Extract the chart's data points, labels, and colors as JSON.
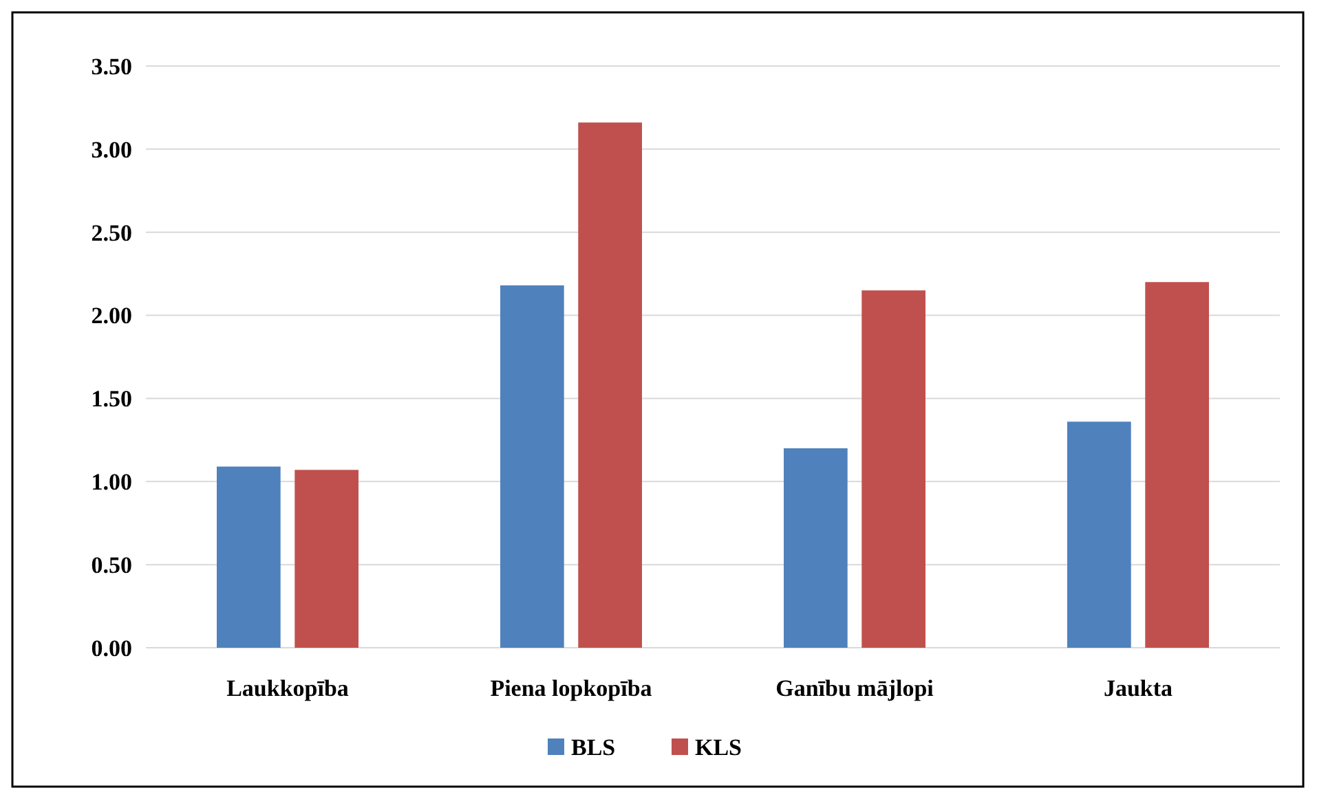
{
  "chart_data": {
    "type": "bar",
    "categories": [
      "Laukkopība",
      "Piena lopkopība",
      "Ganību mājlopi",
      "Jaukta"
    ],
    "series": [
      {
        "name": "BLS",
        "color": "#4f81bd",
        "values": [
          1.09,
          2.18,
          1.2,
          1.36
        ]
      },
      {
        "name": "KLS",
        "color": "#c0504d",
        "values": [
          1.07,
          3.16,
          2.15,
          2.2
        ]
      }
    ],
    "ylim": [
      0,
      3.5
    ],
    "yticks": [
      {
        "value": 0,
        "label": "0.00"
      },
      {
        "value": 0.5,
        "label": "0.50"
      },
      {
        "value": 1,
        "label": "1.00"
      },
      {
        "value": 1.5,
        "label": "1.50"
      },
      {
        "value": 2,
        "label": "2.00"
      },
      {
        "value": 2.5,
        "label": "2.50"
      },
      {
        "value": 3,
        "label": "3.00"
      },
      {
        "value": 3.5,
        "label": "3.50"
      }
    ],
    "grid": "y",
    "legend": "bottom"
  }
}
